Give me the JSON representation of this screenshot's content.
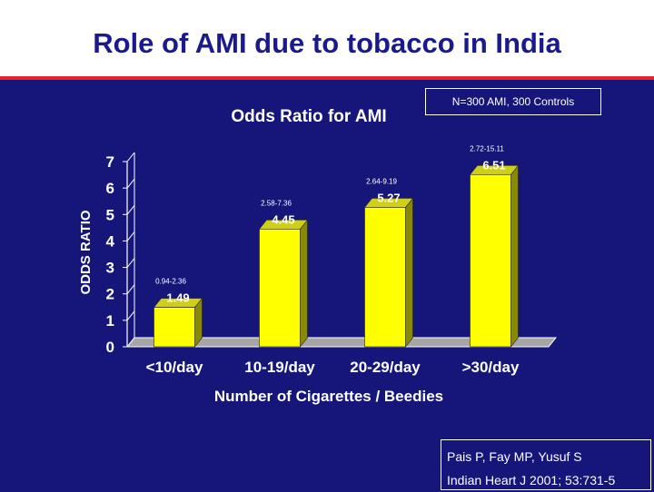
{
  "slide": {
    "title": "Role of AMI due to tobacco in India",
    "sample_note": "N=300 AMI, 300 Controls",
    "reference_line1": "Pais P, Fay MP, Yusuf S",
    "reference_line2": "Indian Heart J 2001; 53:731-5"
  },
  "colors": {
    "background": "#16167a",
    "title_text": "#1a1a8c",
    "rule": "#e8232a",
    "bar_front": "#ffff00",
    "bar_side": "#8a8a00",
    "bar_top": "#cfcf1a",
    "floor": "#a6a6a6"
  },
  "chart_data": {
    "type": "bar",
    "title": "Odds Ratio for AMI",
    "xlabel": "Number of Cigarettes / Beedies",
    "ylabel": "ODDS RATIO",
    "ylim": [
      0,
      7
    ],
    "yticks": [
      "0",
      "1",
      "2",
      "3",
      "4",
      "5",
      "6",
      "7"
    ],
    "categories": [
      "<10/day",
      "10-19/day",
      "20-29/day",
      ">30/day"
    ],
    "values": [
      1.49,
      4.45,
      5.27,
      6.51
    ],
    "value_labels": [
      "1.49",
      "4.45",
      "5.27",
      "6.51"
    ],
    "ci_labels": [
      "0.94-2.36",
      "2.58-7.36",
      "2.64-9.19",
      "2.72-15.11"
    ]
  }
}
